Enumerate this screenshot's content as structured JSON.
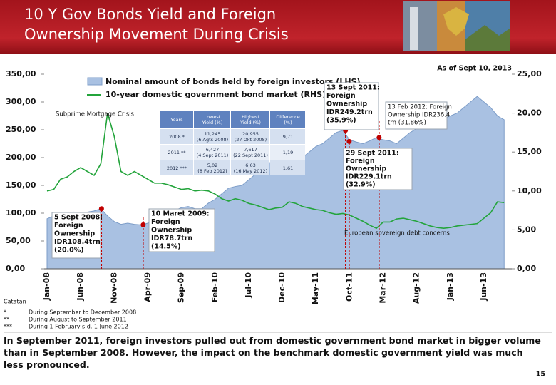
{
  "header": {
    "title": "10 Y Gov Bonds Yield and Foreign Ownership Movement During Crisis"
  },
  "chart_data": {
    "type": "area",
    "as_of": "As of Sept 10, 2013",
    "categories": [
      "Jan-08",
      null,
      null,
      null,
      null,
      "Jun-08",
      null,
      null,
      null,
      null,
      "Nov-08",
      null,
      null,
      null,
      null,
      "Apr-09",
      null,
      null,
      null,
      null,
      "Sep-09",
      null,
      null,
      null,
      null,
      "Feb-10",
      null,
      null,
      null,
      null,
      "Jul-10",
      null,
      null,
      null,
      null,
      "Dec-10",
      null,
      null,
      null,
      null,
      "May-11",
      null,
      null,
      null,
      null,
      "Oct-11",
      null,
      null,
      null,
      null,
      "Mar-12",
      null,
      null,
      null,
      null,
      "Aug-12",
      null,
      null,
      null,
      null,
      "Jan-13",
      null,
      null,
      null,
      null,
      "Jun-13",
      null,
      null,
      null
    ],
    "series": [
      {
        "name": "Nominal amount of bonds held by foreign investors (LHS)",
        "type": "area",
        "color": "#a9c1e2",
        "values": [
          90,
          95,
          96,
          100,
          102,
          100,
          102,
          104,
          108,
          95,
          85,
          80,
          82,
          80,
          79,
          82,
          88,
          95,
          100,
          105,
          110,
          112,
          108,
          108,
          118,
          125,
          135,
          145,
          148,
          150,
          160,
          170,
          180,
          190,
          195,
          196,
          190,
          192,
          200,
          210,
          220,
          225,
          235,
          245,
          249,
          232,
          228,
          225,
          230,
          236,
          232,
          230,
          225,
          235,
          245,
          252,
          255,
          258,
          262,
          270,
          275,
          280,
          290,
          300,
          310,
          300,
          290,
          275,
          268
        ]
      },
      {
        "name": "10-year domestic government bond market (RHS)",
        "type": "line",
        "axis": "y2",
        "color": "#23a43b",
        "values": [
          10.0,
          10.2,
          11.5,
          11.8,
          12.5,
          13.0,
          12.5,
          12.0,
          13.5,
          20.0,
          17.0,
          12.5,
          12.0,
          12.5,
          12.0,
          11.5,
          11.0,
          11.0,
          10.8,
          10.5,
          10.2,
          10.3,
          10.0,
          10.1,
          10.0,
          9.6,
          9.0,
          8.7,
          9.0,
          8.8,
          8.4,
          8.2,
          7.9,
          7.6,
          7.8,
          7.9,
          8.6,
          8.4,
          8.0,
          7.8,
          7.6,
          7.5,
          7.2,
          7.0,
          7.1,
          6.9,
          6.5,
          6.1,
          5.6,
          5.2,
          6.0,
          6.0,
          6.4,
          6.5,
          6.3,
          6.1,
          5.8,
          5.5,
          5.3,
          5.2,
          5.3,
          5.5,
          5.6,
          5.7,
          5.8,
          6.5,
          7.2,
          8.6,
          8.5
        ]
      }
    ],
    "ylim": [
      0,
      350
    ],
    "yticks": [
      {
        "value": 0,
        "label": "0,00"
      },
      {
        "value": 50,
        "label": "50,00"
      },
      {
        "value": 100,
        "label": "100,00"
      },
      {
        "value": 150,
        "label": "150,00"
      },
      {
        "value": 200,
        "label": "200,00"
      },
      {
        "value": 250,
        "label": "250,00"
      },
      {
        "value": 300,
        "label": "300,00"
      },
      {
        "value": 350,
        "label": "350,00"
      }
    ],
    "y2lim": [
      0,
      25
    ],
    "y2ticks": [
      {
        "value": 0,
        "label": "0,00"
      },
      {
        "value": 5,
        "label": "5,00"
      },
      {
        "value": 10,
        "label": "10,00"
      },
      {
        "value": 15,
        "label": "15,00"
      },
      {
        "value": 20,
        "label": "20,00"
      },
      {
        "value": 25,
        "label": "25,00"
      }
    ],
    "grid": false,
    "annotations": [
      [
        "Subprime Mortgage Crisis"
      ],
      [
        "5 Sept 2008:",
        "Foreign",
        "Ownership",
        "IDR108.4trn",
        "(20.0%)"
      ],
      [
        "10 Maret 2009:",
        "Foreign",
        "Ownership",
        "IDR78.7trn",
        "(14.5%)"
      ],
      [
        "13 Sept 2011:",
        "Foreign",
        "Ownership",
        "IDR249.2trn",
        "(35.9%)"
      ],
      [
        "13 Feb 2012: Foreign",
        "Ownership IDR236.4",
        "trn (31.86%)"
      ],
      [
        "29 Sept 2011:",
        "Foreign",
        "Ownership",
        "IDR229.1trn",
        "(32.9%)"
      ],
      [
        "European sovereign debt concerns"
      ]
    ]
  },
  "inset_table": {
    "headers": [
      [
        "Years"
      ],
      [
        "Lowest",
        "Yield (%)"
      ],
      [
        "Highest",
        "Yield (%)"
      ],
      [
        "Difference",
        "(%)"
      ]
    ],
    "rows": [
      [
        [
          "2008 *"
        ],
        [
          "11,245",
          "(6 Agts 2008)"
        ],
        [
          "20,955",
          "(27 Okt 2008)"
        ],
        [
          "9,71"
        ]
      ],
      [
        [
          "2011 **"
        ],
        [
          "6,427",
          "(4 Sept 2011)"
        ],
        [
          "7,617",
          "(22 Sept 2011)"
        ],
        [
          "1,19"
        ]
      ],
      [
        [
          "2012 ***"
        ],
        [
          "5,02",
          "(8 Feb 2012)"
        ],
        [
          "6,63",
          "(16 May 2012)"
        ],
        [
          "1,61"
        ]
      ]
    ]
  },
  "notes": {
    "title": "Catatan :",
    "items": [
      [
        "*",
        "During September to December 2008"
      ],
      [
        "**",
        "During August to September 2011"
      ],
      [
        "***",
        "During 1 February s.d. 1 June 2012"
      ]
    ]
  },
  "summary": "In September 2011, foreign investors pulled out from domestic government bond market in bigger volume than in September 2008. However, the impact on the benchmark domestic government yield was much less pronounced.",
  "page_number": "15"
}
